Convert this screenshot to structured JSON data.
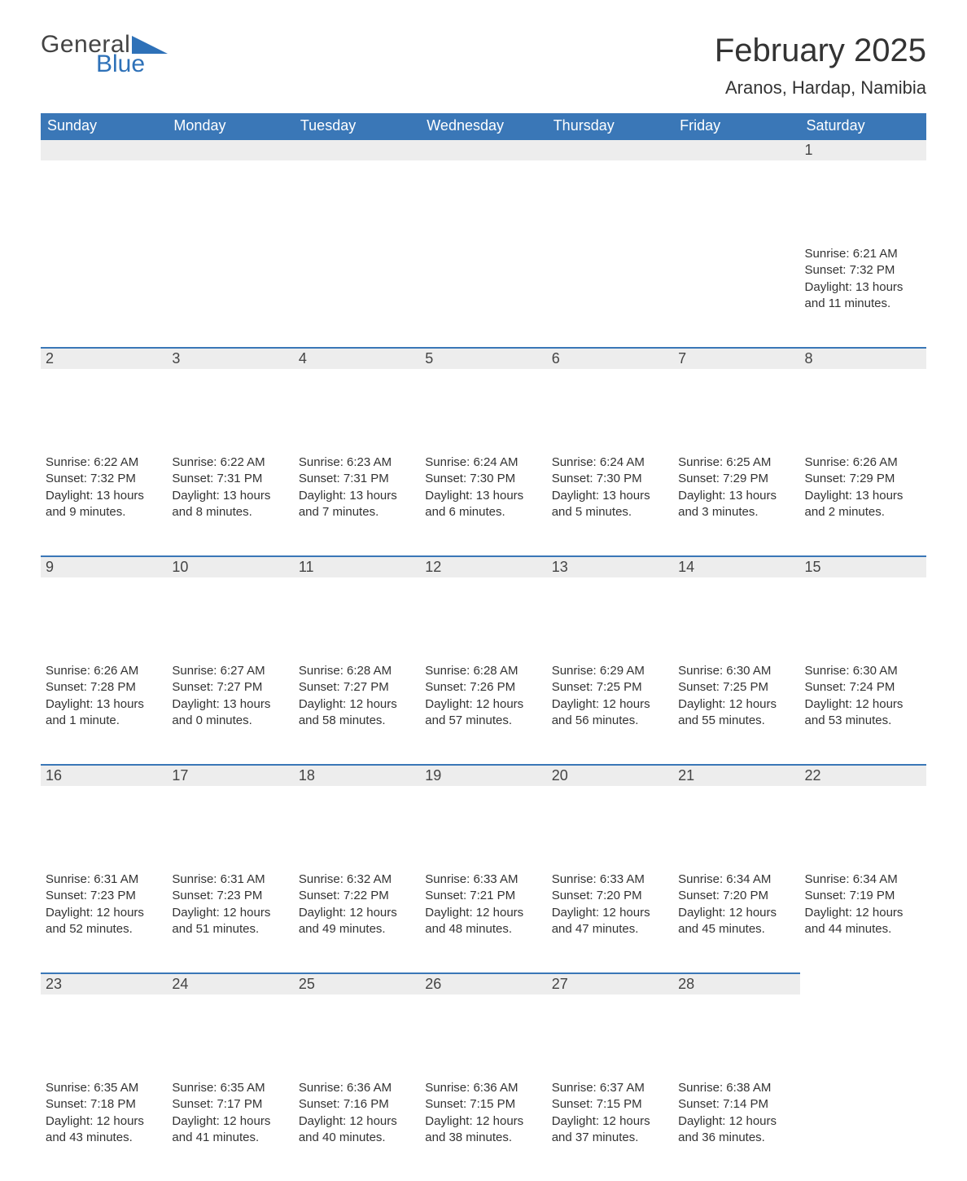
{
  "brand": {
    "top": "General",
    "bottom": "Blue",
    "text_color_top": "#444444",
    "text_color_bottom": "#2e71b8"
  },
  "title": "February 2025",
  "location": "Aranos, Hardap, Namibia",
  "header_bg": "#3a77b7",
  "header_text": "#ffffff",
  "daynum_bg": "#ededed",
  "daynum_border": "#3a77b7",
  "background": "#ffffff",
  "weekdays": [
    "Sunday",
    "Monday",
    "Tuesday",
    "Wednesday",
    "Thursday",
    "Friday",
    "Saturday"
  ],
  "first_weekday_index": 6,
  "days": [
    {
      "n": 1,
      "sunrise": "6:21 AM",
      "sunset": "7:32 PM",
      "dl": "13 hours and 11 minutes."
    },
    {
      "n": 2,
      "sunrise": "6:22 AM",
      "sunset": "7:32 PM",
      "dl": "13 hours and 9 minutes."
    },
    {
      "n": 3,
      "sunrise": "6:22 AM",
      "sunset": "7:31 PM",
      "dl": "13 hours and 8 minutes."
    },
    {
      "n": 4,
      "sunrise": "6:23 AM",
      "sunset": "7:31 PM",
      "dl": "13 hours and 7 minutes."
    },
    {
      "n": 5,
      "sunrise": "6:24 AM",
      "sunset": "7:30 PM",
      "dl": "13 hours and 6 minutes."
    },
    {
      "n": 6,
      "sunrise": "6:24 AM",
      "sunset": "7:30 PM",
      "dl": "13 hours and 5 minutes."
    },
    {
      "n": 7,
      "sunrise": "6:25 AM",
      "sunset": "7:29 PM",
      "dl": "13 hours and 3 minutes."
    },
    {
      "n": 8,
      "sunrise": "6:26 AM",
      "sunset": "7:29 PM",
      "dl": "13 hours and 2 minutes."
    },
    {
      "n": 9,
      "sunrise": "6:26 AM",
      "sunset": "7:28 PM",
      "dl": "13 hours and 1 minute."
    },
    {
      "n": 10,
      "sunrise": "6:27 AM",
      "sunset": "7:27 PM",
      "dl": "13 hours and 0 minutes."
    },
    {
      "n": 11,
      "sunrise": "6:28 AM",
      "sunset": "7:27 PM",
      "dl": "12 hours and 58 minutes."
    },
    {
      "n": 12,
      "sunrise": "6:28 AM",
      "sunset": "7:26 PM",
      "dl": "12 hours and 57 minutes."
    },
    {
      "n": 13,
      "sunrise": "6:29 AM",
      "sunset": "7:25 PM",
      "dl": "12 hours and 56 minutes."
    },
    {
      "n": 14,
      "sunrise": "6:30 AM",
      "sunset": "7:25 PM",
      "dl": "12 hours and 55 minutes."
    },
    {
      "n": 15,
      "sunrise": "6:30 AM",
      "sunset": "7:24 PM",
      "dl": "12 hours and 53 minutes."
    },
    {
      "n": 16,
      "sunrise": "6:31 AM",
      "sunset": "7:23 PM",
      "dl": "12 hours and 52 minutes."
    },
    {
      "n": 17,
      "sunrise": "6:31 AM",
      "sunset": "7:23 PM",
      "dl": "12 hours and 51 minutes."
    },
    {
      "n": 18,
      "sunrise": "6:32 AM",
      "sunset": "7:22 PM",
      "dl": "12 hours and 49 minutes."
    },
    {
      "n": 19,
      "sunrise": "6:33 AM",
      "sunset": "7:21 PM",
      "dl": "12 hours and 48 minutes."
    },
    {
      "n": 20,
      "sunrise": "6:33 AM",
      "sunset": "7:20 PM",
      "dl": "12 hours and 47 minutes."
    },
    {
      "n": 21,
      "sunrise": "6:34 AM",
      "sunset": "7:20 PM",
      "dl": "12 hours and 45 minutes."
    },
    {
      "n": 22,
      "sunrise": "6:34 AM",
      "sunset": "7:19 PM",
      "dl": "12 hours and 44 minutes."
    },
    {
      "n": 23,
      "sunrise": "6:35 AM",
      "sunset": "7:18 PM",
      "dl": "12 hours and 43 minutes."
    },
    {
      "n": 24,
      "sunrise": "6:35 AM",
      "sunset": "7:17 PM",
      "dl": "12 hours and 41 minutes."
    },
    {
      "n": 25,
      "sunrise": "6:36 AM",
      "sunset": "7:16 PM",
      "dl": "12 hours and 40 minutes."
    },
    {
      "n": 26,
      "sunrise": "6:36 AM",
      "sunset": "7:15 PM",
      "dl": "12 hours and 38 minutes."
    },
    {
      "n": 27,
      "sunrise": "6:37 AM",
      "sunset": "7:15 PM",
      "dl": "12 hours and 37 minutes."
    },
    {
      "n": 28,
      "sunrise": "6:38 AM",
      "sunset": "7:14 PM",
      "dl": "12 hours and 36 minutes."
    }
  ],
  "labels": {
    "sunrise": "Sunrise",
    "sunset": "Sunset",
    "daylight": "Daylight"
  }
}
